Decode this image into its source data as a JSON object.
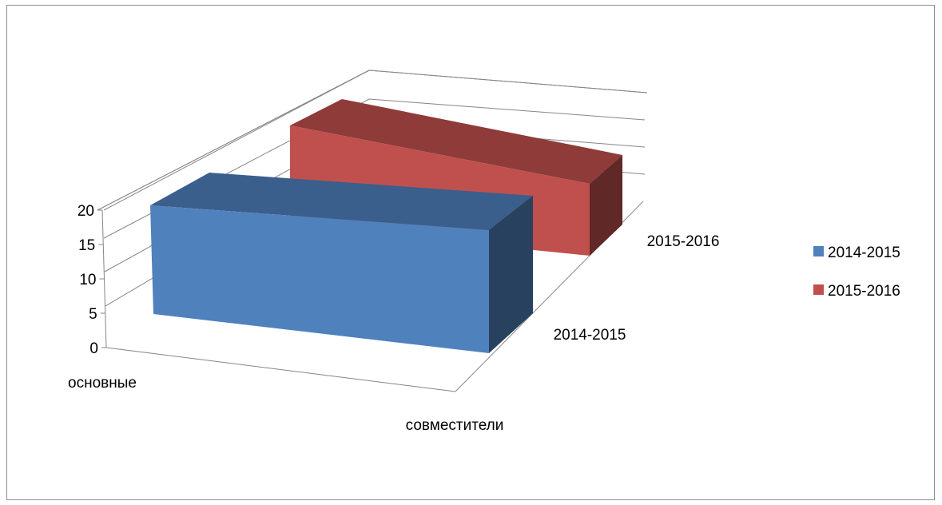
{
  "chart_data": {
    "type": "bar",
    "subtype": "3d-column",
    "title": "",
    "categories": [
      "основные",
      "совместители"
    ],
    "depth_labels": [
      "2014-2015",
      "2015-2016"
    ],
    "series": [
      {
        "name": "2014-2015",
        "values": [
          20,
          20
        ],
        "color": "#4f81bd"
      },
      {
        "name": "2015-2016",
        "values": [
          20,
          20
        ],
        "color": "#c0504d"
      }
    ],
    "y_ticks": [
      "0",
      "5",
      "10",
      "15",
      "20"
    ],
    "ylim": [
      0,
      20
    ],
    "legend_position": "right",
    "grid": true
  }
}
